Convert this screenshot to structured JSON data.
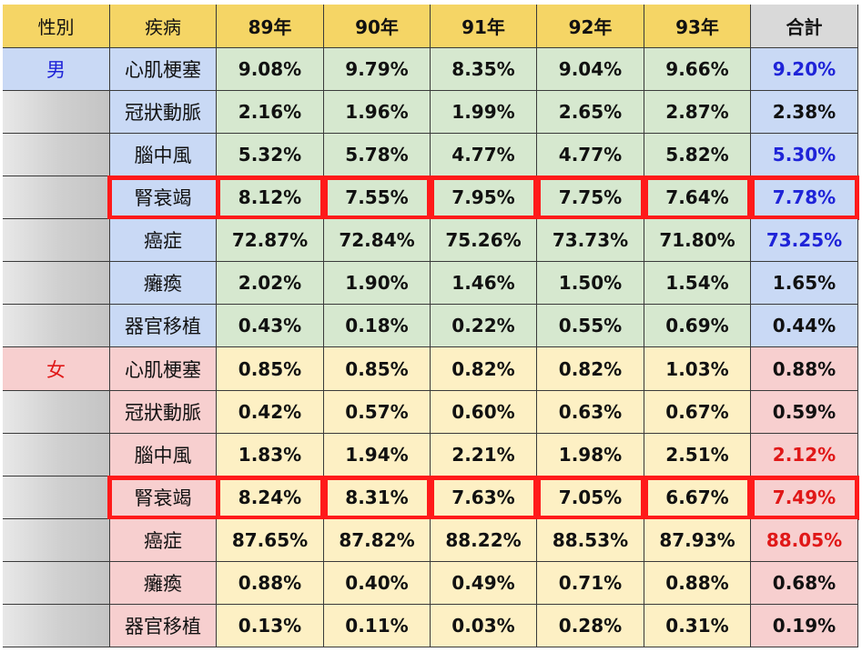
{
  "headers": [
    "性別",
    "疾病",
    "89年",
    "90年",
    "91年",
    "92年",
    "93年",
    "合計"
  ],
  "colors": {
    "header_bg": "#f5d565",
    "header_total_bg": "#d9d9d9",
    "male_bg": "#c9d9f5",
    "male_data_bg": "#d6e8cf",
    "female_bg": "#f7cfcf",
    "female_data_bg": "#fdf0c4",
    "empty_gray": "#cfcfcf",
    "male_text": "#1f24d8",
    "female_text": "#e01818",
    "highlight": "#ff1a1a"
  },
  "groups": [
    {
      "gender": "男",
      "accent": "male",
      "rows": [
        {
          "disease": "心肌梗塞",
          "values": [
            "9.08%",
            "9.79%",
            "8.35%",
            "9.04%",
            "9.66%"
          ],
          "total": "9.20%",
          "total_colored": true,
          "highlight": false
        },
        {
          "disease": "冠狀動脈",
          "values": [
            "2.16%",
            "1.96%",
            "1.99%",
            "2.65%",
            "2.87%"
          ],
          "total": "2.38%",
          "total_colored": false,
          "highlight": false
        },
        {
          "disease": "腦中風",
          "values": [
            "5.32%",
            "5.78%",
            "4.77%",
            "4.77%",
            "5.82%"
          ],
          "total": "5.30%",
          "total_colored": true,
          "highlight": false
        },
        {
          "disease": "腎衰竭",
          "values": [
            "8.12%",
            "7.55%",
            "7.95%",
            "7.75%",
            "7.64%"
          ],
          "total": "7.78%",
          "total_colored": true,
          "highlight": true
        },
        {
          "disease": "癌症",
          "values": [
            "72.87%",
            "72.84%",
            "75.26%",
            "73.73%",
            "71.80%"
          ],
          "total": "73.25%",
          "total_colored": true,
          "highlight": false
        },
        {
          "disease": "癱瘓",
          "values": [
            "2.02%",
            "1.90%",
            "1.46%",
            "1.50%",
            "1.54%"
          ],
          "total": "1.65%",
          "total_colored": false,
          "highlight": false
        },
        {
          "disease": "器官移植",
          "values": [
            "0.43%",
            "0.18%",
            "0.22%",
            "0.55%",
            "0.69%"
          ],
          "total": "0.44%",
          "total_colored": false,
          "highlight": false
        }
      ]
    },
    {
      "gender": "女",
      "accent": "female",
      "rows": [
        {
          "disease": "心肌梗塞",
          "values": [
            "0.85%",
            "0.85%",
            "0.82%",
            "0.82%",
            "1.03%"
          ],
          "total": "0.88%",
          "total_colored": false,
          "highlight": false
        },
        {
          "disease": "冠狀動脈",
          "values": [
            "0.42%",
            "0.57%",
            "0.60%",
            "0.63%",
            "0.67%"
          ],
          "total": "0.59%",
          "total_colored": false,
          "highlight": false
        },
        {
          "disease": "腦中風",
          "values": [
            "1.83%",
            "1.94%",
            "2.21%",
            "1.98%",
            "2.51%"
          ],
          "total": "2.12%",
          "total_colored": true,
          "highlight": false
        },
        {
          "disease": "腎衰竭",
          "values": [
            "8.24%",
            "8.31%",
            "7.63%",
            "7.05%",
            "6.67%"
          ],
          "total": "7.49%",
          "total_colored": true,
          "highlight": true
        },
        {
          "disease": "癌症",
          "values": [
            "87.65%",
            "87.82%",
            "88.22%",
            "88.53%",
            "87.93%"
          ],
          "total": "88.05%",
          "total_colored": true,
          "highlight": false
        },
        {
          "disease": "癱瘓",
          "values": [
            "0.88%",
            "0.40%",
            "0.49%",
            "0.71%",
            "0.88%"
          ],
          "total": "0.68%",
          "total_colored": false,
          "highlight": false
        },
        {
          "disease": "器官移植",
          "values": [
            "0.13%",
            "0.11%",
            "0.03%",
            "0.28%",
            "0.31%"
          ],
          "total": "0.19%",
          "total_colored": false,
          "highlight": false
        }
      ]
    }
  ]
}
